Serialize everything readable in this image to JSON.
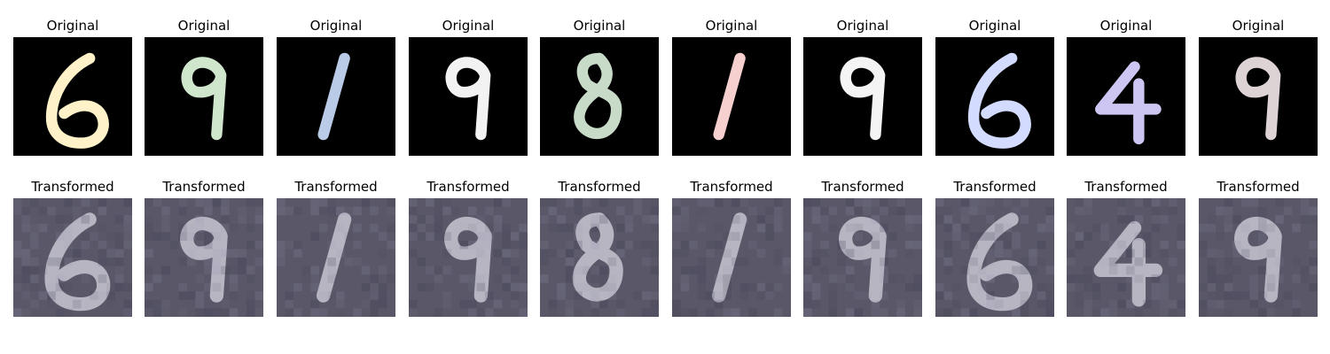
{
  "labels": {
    "original": "Original",
    "transformed": "Transformed"
  },
  "originals": [
    {
      "digit": "6",
      "color": "#fff1c8"
    },
    {
      "digit": "9",
      "color": "#cfe6cc"
    },
    {
      "digit": "1",
      "color": "#b9cbe6"
    },
    {
      "digit": "9",
      "color": "#f2f2f2"
    },
    {
      "digit": "8",
      "color": "#c8dac8"
    },
    {
      "digit": "1",
      "color": "#f6cfcf"
    },
    {
      "digit": "9",
      "color": "#f4f4f4"
    },
    {
      "digit": "6",
      "color": "#d3dcff"
    },
    {
      "digit": "4",
      "color": "#cdc6f3"
    },
    {
      "digit": "9",
      "color": "#ddd2d4"
    }
  ],
  "transformed": [
    {
      "digit": "6"
    },
    {
      "digit": "9"
    },
    {
      "digit": "1"
    },
    {
      "digit": "9"
    },
    {
      "digit": "8"
    },
    {
      "digit": "1"
    },
    {
      "digit": "9"
    },
    {
      "digit": "6"
    },
    {
      "digit": "4"
    },
    {
      "digit": "9"
    }
  ],
  "colors": {
    "original_background": "#000000",
    "transformed_background": "#5a5868",
    "transformed_glyph": "#d7d4df"
  }
}
